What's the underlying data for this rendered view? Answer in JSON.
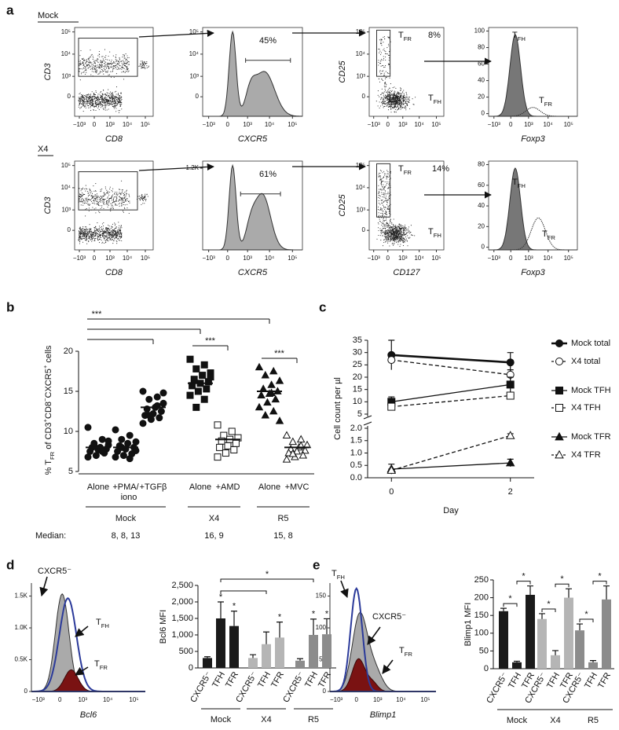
{
  "panel_labels": [
    "a",
    "b",
    "c",
    "d",
    "e"
  ],
  "flow": {
    "conditions": [
      "Mock",
      "X4"
    ],
    "rows": [
      {
        "plots": [
          {
            "kind": "dot",
            "ylabel": "CD3",
            "xlabel": "CD8",
            "xticks": [
              "−10³",
              "0",
              "10³",
              "10⁴",
              "10⁵"
            ],
            "yticks": [
              "10⁵",
              "10⁴",
              "10³",
              "0"
            ]
          },
          {
            "kind": "hist",
            "xlabel": "CXCR5",
            "xticks": [
              "−10³",
              "0",
              "10³",
              "10⁴",
              "10⁵"
            ],
            "yticks": [
              "10⁵",
              "10⁴",
              "10³",
              "0"
            ],
            "annotations": [
              "45%"
            ]
          },
          {
            "kind": "dot3",
            "ylabel": "CD25",
            "xticks": [
              "−10³",
              "0",
              "10³",
              "10⁴",
              "10⁵"
            ],
            "yticks": [
              "10⁵",
              "10⁴",
              "10³",
              "0"
            ],
            "annotations": [
              [
                "T",
                {
                  "sub": "FR"
                }
              ],
              "8%",
              [
                "T",
                {
                  "sub": "FH"
                }
              ]
            ]
          },
          {
            "kind": "overlay",
            "xlabel": "Foxp3",
            "xticks": [
              "−10³",
              "0",
              "10³",
              "10⁴",
              "10⁵"
            ],
            "yticks": [
              "100",
              "80",
              "60",
              "40",
              "20",
              "0"
            ],
            "annotations": [
              [
                "T",
                {
                  "sub": "FH"
                }
              ],
              [
                "T",
                {
                  "sub": "FR"
                }
              ]
            ]
          }
        ]
      },
      {
        "plots": [
          {
            "kind": "dot",
            "ylabel": "CD3",
            "xlabel": "CD8",
            "xticks": [
              "−10³",
              "0",
              "10³",
              "10⁴",
              "10⁵"
            ],
            "yticks": [
              "10⁵",
              "10⁴",
              "10³",
              "0"
            ]
          },
          {
            "kind": "hist",
            "xlabel": "CXCR5",
            "xticks": [
              "−10³",
              "0",
              "10³",
              "10⁴",
              "10⁵"
            ],
            "yticks": [
              "1.2K"
            ],
            "annotations": [
              "61%"
            ]
          },
          {
            "kind": "dot3",
            "ylabel": "CD25",
            "xlabel": "CD127",
            "xticks": [
              "−10³",
              "0",
              "10³",
              "10⁴",
              "10⁵"
            ],
            "yticks": [
              "10⁵",
              "10⁴",
              "10³",
              "0"
            ],
            "annotations": [
              [
                "T",
                {
                  "sub": "FR"
                }
              ],
              "14%",
              [
                "T",
                {
                  "sub": "FH"
                }
              ]
            ]
          },
          {
            "kind": "overlay",
            "xlabel": "Foxp3",
            "xticks": [
              "−10³",
              "0",
              "10³",
              "10⁴",
              "10⁵"
            ],
            "yticks": [
              "80",
              "60",
              "40",
              "20",
              "0"
            ],
            "annotations": [
              [
                "T",
                {
                  "sub": "FH"
                }
              ],
              [
                "T",
                {
                  "sub": "FR"
                }
              ]
            ]
          }
        ]
      }
    ],
    "histograms": [
      {
        "xlabel": "Bcl6",
        "xticks": [
          "−10³",
          "0",
          "10³",
          "10⁴",
          "10⁵"
        ],
        "yticks": [
          "1.5K",
          "1.0K",
          "0.5K",
          "0"
        ],
        "annotations": [
          "CXCR5⁻",
          [
            "T",
            {
              "sub": "FH"
            }
          ],
          [
            "T",
            {
              "sub": "FR"
            }
          ]
        ]
      },
      {
        "xlabel": "Blimp1",
        "xticks": [
          "−10³",
          "0",
          "10³",
          "10⁴",
          "10⁵"
        ],
        "yticks": [
          "150",
          "100",
          "50",
          "0"
        ],
        "annotations": [
          [
            "T",
            {
              "sub": "FH"
            }
          ],
          "CXCR5⁻",
          [
            "T",
            {
              "sub": "FR"
            }
          ]
        ]
      }
    ]
  },
  "chart_data": [
    {
      "type": "dotplot",
      "ylabel": [
        "% T",
        {
          "sub": "FR"
        },
        " of CD3",
        {
          "sup": "+"
        },
        "CD8",
        {
          "sup": "−"
        },
        "CXCR5",
        {
          "sup": "+"
        },
        " cells"
      ],
      "categories": [
        "Alone",
        [
          "+PMA/",
          "iono"
        ],
        "+TGFβ",
        "Alone",
        "+AMD",
        "Alone",
        "+MVC"
      ],
      "markers": [
        "circle",
        "circle",
        "circle",
        "square",
        "square-open",
        "triangle",
        "triangle-open"
      ],
      "values": [
        [
          10.5,
          9,
          8.5,
          8.3,
          8,
          8,
          7.8,
          7.7,
          7.5,
          7.3,
          7,
          6.8,
          7.5,
          8.2,
          8.8
        ],
        [
          10.2,
          9.5,
          9,
          8.7,
          8.5,
          8.2,
          8,
          7.8,
          7.5,
          7.2,
          7,
          6.8,
          6.6,
          8,
          7.6
        ],
        [
          15,
          14.3,
          14,
          13.5,
          13,
          12.8,
          12.5,
          12.2,
          12,
          11.7,
          11.5,
          11,
          13.2,
          12,
          14.8
        ],
        [
          19,
          18.3,
          17.8,
          17.3,
          17,
          16.5,
          16.2,
          16,
          15.7,
          15.3,
          15,
          14.5,
          14,
          13,
          16.8
        ],
        [
          10.8,
          10,
          9.5,
          9.2,
          9,
          8.8,
          8.5,
          8.2,
          8,
          7.7,
          7.3,
          6.8
        ],
        [
          18,
          17.5,
          17,
          16.3,
          15.8,
          15.3,
          15,
          14.7,
          14.5,
          14,
          13.6,
          13,
          12.5,
          12,
          11.3,
          14.8
        ],
        [
          9.5,
          9,
          8.7,
          8.3,
          8,
          7.8,
          7.6,
          7.5,
          7.3,
          7,
          6.8,
          6.5,
          8.2,
          7.2
        ]
      ],
      "medians": [
        8,
        8,
        13,
        16,
        9,
        15,
        8
      ],
      "ylim": [
        5,
        20
      ],
      "yticks": [
        5,
        10,
        15,
        20
      ],
      "groups": [
        {
          "label": "Mock",
          "from": 0,
          "to": 2
        },
        {
          "label": "X4",
          "from": 3,
          "to": 4
        },
        {
          "label": "R5",
          "from": 5,
          "to": 6
        }
      ],
      "median_title": "Median:",
      "median_labels": [
        "8, 8, 13",
        "16, 9",
        "15, 8"
      ],
      "significance": [
        {
          "from": 0,
          "to": 5,
          "label": "***"
        },
        {
          "from": 0,
          "to": 3
        },
        {
          "from": 0,
          "to": 2
        },
        {
          "from": 3,
          "to": 4,
          "label": "***"
        },
        {
          "from": 5,
          "to": 6,
          "label": "***"
        }
      ]
    },
    {
      "type": "line",
      "xlabel": "Day",
      "ylabel": "Cell count per µl",
      "x": [
        0,
        2
      ],
      "xticks": [
        0,
        2
      ],
      "xlim": [
        -0.4,
        2.4
      ],
      "ylim_upper": [
        5,
        35
      ],
      "yticks_upper": [
        5,
        10,
        15,
        20,
        25,
        30,
        35
      ],
      "ylim_lower": [
        0,
        2
      ],
      "yticks_lower": [
        {
          "value": 0,
          "label": "0.0"
        },
        0.5,
        {
          "value": 1,
          "label": "1.0"
        },
        1.5,
        {
          "value": 2,
          "label": "2.0"
        }
      ],
      "color": "#111111",
      "series": [
        {
          "name": "Mock total",
          "values": [
            29,
            26
          ],
          "errors": [
            6,
            4
          ],
          "segment": "upper",
          "marker": "circle",
          "dashed": false
        },
        {
          "name": "X4 total",
          "values": [
            27,
            21
          ],
          "errors": [
            1,
            2
          ],
          "segment": "upper",
          "marker": "circle-open",
          "dashed": true
        },
        {
          "name": "Mock TFH",
          "values": [
            10,
            17
          ],
          "errors": [
            2,
            3
          ],
          "segment": "upper",
          "marker": "square",
          "dashed": false
        },
        {
          "name": "X4 TFH",
          "values": [
            8,
            12.5
          ],
          "errors": [
            1,
            1
          ],
          "segment": "upper",
          "marker": "square-open",
          "dashed": true
        },
        {
          "name": "Mock TFR",
          "values": [
            0.35,
            0.6
          ],
          "errors": [
            0.2,
            0.15
          ],
          "segment": "lower",
          "marker": "triangle",
          "dashed": false
        },
        {
          "name": "X4 TFR",
          "values": [
            0.3,
            1.7
          ],
          "errors": [
            0.05,
            0.08
          ],
          "segment": "lower",
          "marker": "triangle-open",
          "dashed": true
        }
      ]
    },
    {
      "type": "bar",
      "ylabel": "Bcl6 MFI",
      "categories": [
        "CXCR5⁻",
        "TFH",
        "TFR"
      ],
      "ylim": [
        0,
        2500
      ],
      "yticks": [
        0,
        500,
        {
          "value": 1000,
          "label": "1,000"
        },
        {
          "value": 1500,
          "label": "1,500"
        },
        {
          "value": 2000,
          "label": "2,000"
        },
        {
          "value": 2500,
          "label": "2,500"
        }
      ],
      "series": [
        {
          "name": "Mock",
          "color": "#1a1a1a",
          "values": [
            300,
            1500,
            1270
          ],
          "errors": [
            40,
            500,
            450
          ]
        },
        {
          "name": "X4",
          "color": "#b5b5b5",
          "values": [
            300,
            720,
            920
          ],
          "errors": [
            100,
            370,
            470
          ]
        },
        {
          "name": "R5",
          "color": "#8c8c8c",
          "values": [
            220,
            1000,
            1020
          ],
          "errors": [
            60,
            480,
            470
          ]
        }
      ],
      "significance": [
        {
          "from": 1,
          "to": 7,
          "label": "*"
        },
        {
          "from": 1,
          "to": 4
        }
      ],
      "bar_labels": [
        {
          "bar": 1,
          "label": "*"
        },
        {
          "bar": 2,
          "label": "*"
        },
        {
          "bar": 5,
          "label": "*"
        },
        {
          "bar": 7,
          "label": "*"
        },
        {
          "bar": 8,
          "label": "*"
        }
      ]
    },
    {
      "type": "bar",
      "ylabel": "Blimp1 MFI",
      "categories": [
        "CXCR5⁻",
        "TFH",
        "TFR"
      ],
      "ylim": [
        0,
        250
      ],
      "yticks": [
        0,
        50,
        100,
        150,
        200,
        250
      ],
      "series": [
        {
          "name": "Mock",
          "color": "#1a1a1a",
          "values": [
            162,
            18,
            208
          ],
          "errors": [
            8,
            3,
            25
          ]
        },
        {
          "name": "X4",
          "color": "#b5b5b5",
          "values": [
            140,
            38,
            200
          ],
          "errors": [
            15,
            13,
            25
          ]
        },
        {
          "name": "R5",
          "color": "#8c8c8c",
          "values": [
            108,
            18,
            195
          ],
          "errors": [
            18,
            5,
            38
          ]
        }
      ],
      "significance": [
        {
          "from": 0,
          "to": 1,
          "label": "*"
        },
        {
          "from": 1,
          "to": 2,
          "label": "*"
        },
        {
          "from": 3,
          "to": 4,
          "label": "*"
        },
        {
          "from": 4,
          "to": 5,
          "label": "*"
        },
        {
          "from": 6,
          "to": 7,
          "label": "*"
        },
        {
          "from": 7,
          "to": 8,
          "label": "*"
        }
      ]
    }
  ]
}
